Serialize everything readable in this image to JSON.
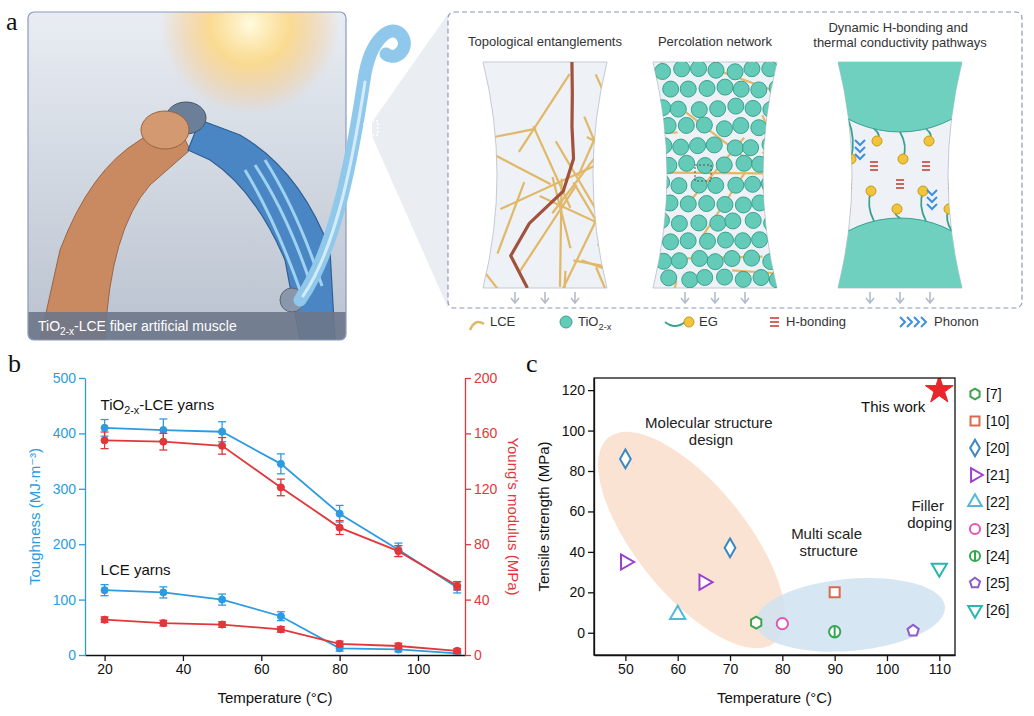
{
  "figure": {
    "panel_labels": [
      "a",
      "b",
      "c"
    ],
    "illustration_caption": "TiO2-x-LCE fiber artificial muscle",
    "schematic_titles": [
      "Topological entanglements",
      "Percolation network",
      "Dynamic H-bonding and thermal conductivity pathways"
    ],
    "schematic_legend": [
      "LCE",
      "TiO2-x",
      "EG",
      "H-bonding",
      "Phonon"
    ]
  },
  "chart_data": [
    {
      "type": "line",
      "x": [
        20,
        35,
        50,
        65,
        80,
        95,
        110
      ],
      "xlabel": "Temperature (°C)",
      "xlim": [
        15,
        112
      ],
      "xticks": [
        20,
        40,
        60,
        80,
        100
      ],
      "ylabel": "Toughness (MJ·m⁻³)",
      "ylim": [
        0,
        500
      ],
      "yticks": [
        0,
        100,
        200,
        300,
        400,
        500
      ],
      "y2label": "Young's modulus (MPa)",
      "y2lim": [
        0,
        200
      ],
      "y2ticks": [
        0,
        40,
        80,
        120,
        160,
        200
      ],
      "annotations": [
        "TiO2-x-LCE yarns",
        "LCE yarns"
      ],
      "series": [
        {
          "color": "#2e9be0",
          "marker": "circle",
          "values": [
            410,
            406,
            403,
            345,
            255,
            190,
            122
          ],
          "errors": [
            15,
            20,
            18,
            18,
            15,
            12,
            10
          ]
        },
        {
          "color": "#e2373a",
          "marker": "circle",
          "axis": "y2",
          "values": [
            155,
            154,
            151,
            121,
            92,
            75,
            50
          ],
          "errors": [
            6,
            6,
            6,
            6,
            5,
            4,
            3
          ]
        },
        {
          "color": "#2e9be0",
          "marker": "circle",
          "values": [
            117,
            113,
            100,
            70,
            12,
            10,
            3
          ],
          "errors": [
            10,
            10,
            10,
            8,
            5,
            4,
            3
          ]
        },
        {
          "color": "#e2373a",
          "marker": "circle",
          "axis": "y2",
          "values": [
            25.5,
            23,
            22,
            18.5,
            8,
            6.5,
            3
          ],
          "errors": [
            2,
            2,
            2,
            2,
            2,
            2,
            1.5
          ]
        }
      ]
    },
    {
      "type": "scatter",
      "xlabel": "Temperature (°C)",
      "xlim": [
        44,
        113
      ],
      "xticks": [
        50,
        60,
        70,
        80,
        90,
        100,
        110
      ],
      "ylabel": "Tensile strength (MPa)",
      "ylim": [
        -11,
        126
      ],
      "yticks": [
        0,
        20,
        40,
        60,
        80,
        100,
        120
      ],
      "legend": "right",
      "annotations": [
        "Molecular structure design",
        "Multi scale structure",
        "Filler doping",
        "This work"
      ],
      "series": [
        {
          "name": "[7]",
          "color": "#3fa34d",
          "marker": "hexagon",
          "x": [
            75
          ],
          "values": [
            5
          ]
        },
        {
          "name": "[10]",
          "color": "#d9694f",
          "marker": "square",
          "x": [
            90
          ],
          "values": [
            20
          ]
        },
        {
          "name": "[20]",
          "color": "#3a87c2",
          "marker": "diamond",
          "x": [
            50,
            70
          ],
          "values": [
            86,
            42
          ]
        },
        {
          "name": "[21]",
          "color": "#9a3fd0",
          "marker": "triangle-right",
          "x": [
            50,
            65
          ],
          "values": [
            35,
            25
          ]
        },
        {
          "name": "[22]",
          "color": "#52b8d8",
          "marker": "triangle-up",
          "x": [
            60
          ],
          "values": [
            9
          ]
        },
        {
          "name": "[23]",
          "color": "#e455b5",
          "marker": "circle",
          "x": [
            80
          ],
          "values": [
            4.5
          ]
        },
        {
          "name": "[24]",
          "color": "#34a853",
          "marker": "circle-bar",
          "x": [
            90
          ],
          "values": [
            0.5
          ]
        },
        {
          "name": "[25]",
          "color": "#8d5bd0",
          "marker": "pentagon",
          "x": [
            105
          ],
          "values": [
            1
          ]
        },
        {
          "name": "[26]",
          "color": "#2bb5b0",
          "marker": "triangle-down",
          "x": [
            110
          ],
          "values": [
            32
          ]
        },
        {
          "color": "#e8262b",
          "marker": "star",
          "x": [
            110
          ],
          "values": [
            120
          ]
        }
      ]
    }
  ]
}
